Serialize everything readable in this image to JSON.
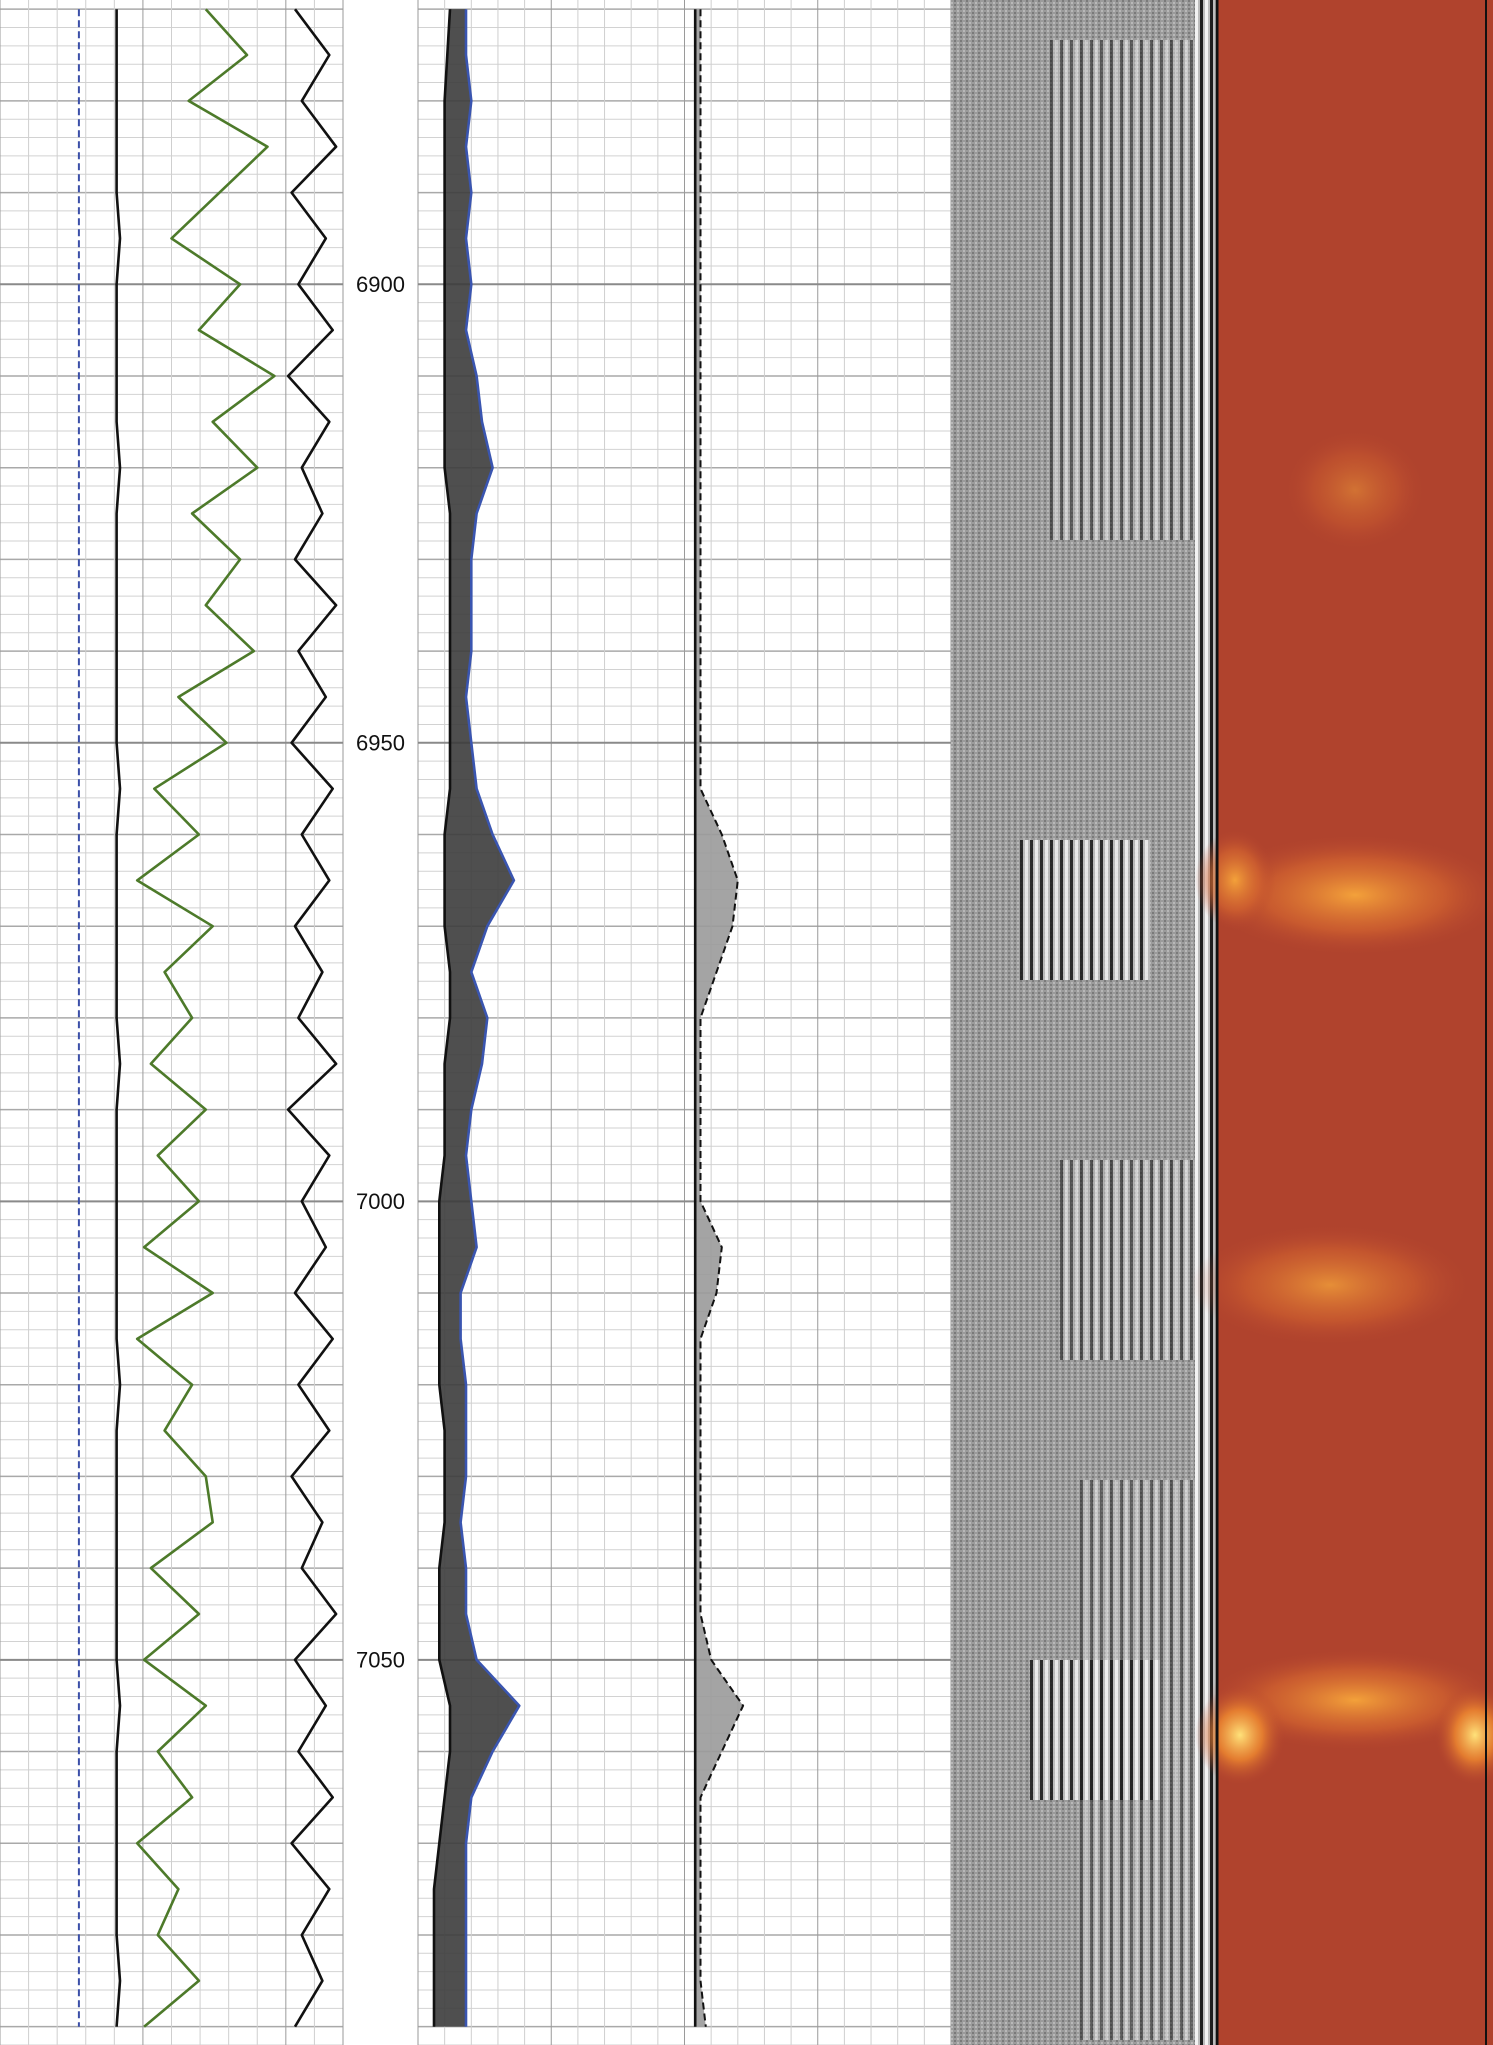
{
  "chart_data": {
    "type": "well-log",
    "y": [
      6870,
      6875,
      6880,
      6885,
      6890,
      6895,
      6900,
      6905,
      6910,
      6915,
      6920,
      6925,
      6930,
      6935,
      6940,
      6945,
      6950,
      6955,
      6960,
      6965,
      6970,
      6975,
      6980,
      6985,
      6990,
      6995,
      7000,
      7005,
      7010,
      7015,
      7020,
      7025,
      7030,
      7035,
      7040,
      7045,
      7050,
      7055,
      7060,
      7065,
      7070,
      7075,
      7080,
      7085,
      7090
    ],
    "ylim": [
      6869,
      7092
    ],
    "yticks": [
      6900,
      6950,
      7000,
      7050
    ],
    "grid": true,
    "tracks": [
      {
        "xlim": [
          0,
          100
        ],
        "series": [
          {
            "color": "#3b4fa8",
            "style": "dashed",
            "values": [
              23,
              23,
              23,
              23,
              23,
              23,
              23,
              23,
              23,
              23,
              23,
              23,
              23,
              23,
              23,
              23,
              23,
              23,
              23,
              23,
              23,
              23,
              23,
              23,
              23,
              23,
              23,
              23,
              23,
              23,
              23,
              23,
              23,
              23,
              23,
              23,
              23,
              23,
              23,
              23,
              23,
              23,
              23,
              23,
              23
            ]
          },
          {
            "color": "#111111",
            "style": "solid",
            "values": [
              34,
              34,
              34,
              34,
              34,
              35,
              34,
              34,
              34,
              34,
              35,
              34,
              34,
              34,
              34,
              34,
              34,
              35,
              34,
              34,
              34,
              34,
              34,
              35,
              34,
              34,
              34,
              34,
              34,
              34,
              35,
              34,
              34,
              34,
              34,
              34,
              34,
              35,
              34,
              34,
              34,
              34,
              34,
              35,
              34
            ]
          },
          {
            "color": "#4d7a2a",
            "style": "solid",
            "values": [
              60,
              72,
              55,
              78,
              64,
              50,
              70,
              58,
              80,
              62,
              75,
              56,
              70,
              60,
              74,
              52,
              66,
              45,
              58,
              40,
              62,
              48,
              56,
              44,
              60,
              46,
              58,
              42,
              62,
              40,
              56,
              48,
              60,
              62,
              44,
              58,
              42,
              60,
              46,
              56,
              40,
              52,
              46,
              58,
              42
            ]
          },
          {
            "color": "#111111",
            "style": "solid",
            "values": [
              86,
              96,
              88,
              98,
              85,
              95,
              87,
              97,
              84,
              96,
              88,
              94,
              86,
              98,
              87,
              95,
              85,
              97,
              88,
              96,
              86,
              94,
              87,
              98,
              84,
              96,
              88,
              95,
              86,
              97,
              87,
              96,
              85,
              94,
              88,
              98,
              86,
              95,
              87,
              97,
              85,
              96,
              88,
              94,
              86
            ]
          }
        ]
      },
      {
        "xlim": [
          0,
          100
        ],
        "series": [
          {
            "color": "#111111",
            "style": "solid",
            "values": [
              6,
              5.5,
              5,
              5,
              5,
              5,
              5,
              5,
              5,
              5,
              5,
              6,
              6,
              6,
              6,
              6,
              6,
              6,
              5,
              5,
              5,
              6,
              6,
              5,
              5,
              5,
              4,
              4,
              4,
              4,
              4,
              5,
              5,
              5,
              4,
              4,
              4,
              6,
              6,
              5,
              4,
              3,
              3,
              3,
              3
            ]
          },
          {
            "color": "#3a55b0",
            "style": "solid",
            "fill": "#3c3c3c",
            "values": [
              9,
              9,
              10,
              9,
              10,
              9,
              10,
              9,
              11,
              12,
              14,
              11,
              10,
              10,
              10,
              9,
              10,
              11,
              14,
              18,
              13,
              10,
              13,
              12,
              10,
              9,
              10,
              11,
              8,
              8,
              9,
              9,
              9,
              8,
              9,
              9,
              11,
              19,
              14,
              10,
              9,
              9,
              9,
              9,
              9
            ]
          },
          {
            "color": "#111111",
            "style": "solid",
            "values": [
              52,
              52,
              52,
              52,
              52,
              52,
              52,
              52,
              52,
              52,
              52,
              52,
              52,
              52,
              52,
              52,
              52,
              52,
              52,
              52,
              52,
              52,
              52,
              52,
              52,
              52,
              52,
              52,
              52,
              52,
              52,
              52,
              52,
              52,
              52,
              52,
              52,
              52,
              52,
              52,
              52,
              52,
              52,
              52,
              52
            ]
          },
          {
            "color": "#111111",
            "style": "dashed",
            "fill": "#9a9a9a",
            "values": [
              53,
              53,
              53,
              53,
              53,
              53,
              53,
              53,
              53,
              53,
              53,
              53,
              53,
              53,
              53,
              53,
              53,
              53,
              57,
              60,
              59,
              56,
              53,
              53,
              53,
              53,
              53,
              57,
              56,
              53,
              53,
              53,
              53,
              53,
              53,
              53,
              55,
              61,
              57,
              53,
              53,
              53,
              53,
              53,
              54
            ]
          }
        ]
      }
    ]
  }
}
